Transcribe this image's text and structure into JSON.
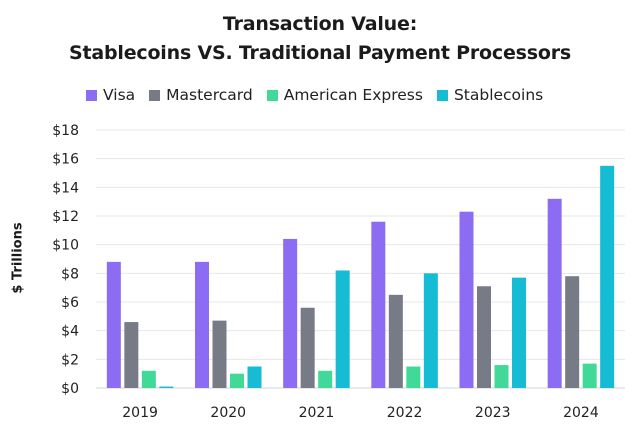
{
  "chart_data": {
    "type": "bar",
    "title": "Transaction Value:",
    "subtitle": "Stablecoins VS. Traditional Payment Processors",
    "ylabel": "$ Trillions",
    "xlabel": "",
    "categories": [
      "2019",
      "2020",
      "2021",
      "2022",
      "2023",
      "2024"
    ],
    "ylim": [
      0,
      18
    ],
    "yticks": [
      "$0",
      "$2",
      "$4",
      "$6",
      "$8",
      "$10",
      "$12",
      "$14",
      "$16",
      "$18"
    ],
    "grid": true,
    "legend_position": "top",
    "series": [
      {
        "name": "Visa",
        "color": "#8b6cf3",
        "values": [
          8.8,
          8.8,
          10.4,
          11.6,
          12.3,
          13.2
        ]
      },
      {
        "name": "Mastercard",
        "color": "#767b85",
        "values": [
          4.6,
          4.7,
          5.6,
          6.5,
          7.1,
          7.8
        ]
      },
      {
        "name": "American Express",
        "color": "#40d998",
        "values": [
          1.2,
          1.0,
          1.2,
          1.5,
          1.6,
          1.7
        ]
      },
      {
        "name": "Stablecoins",
        "color": "#16bbd4",
        "values": [
          0.1,
          1.5,
          8.2,
          8.0,
          7.7,
          15.5
        ]
      }
    ]
  }
}
